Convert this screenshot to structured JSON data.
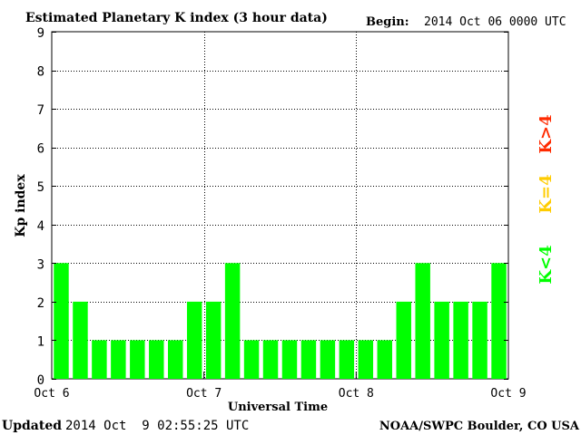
{
  "header": {
    "title": "Estimated Planetary K index (3 hour data)",
    "begin_label": "Begin:",
    "begin_value": "2014 Oct 06 0000 UTC"
  },
  "footer": {
    "updated_label": "Updated",
    "updated_value": "2014 Oct  9 02:55:25 UTC",
    "credit": "NOAA/SWPC Boulder, CO USA"
  },
  "legend": {
    "low": "K<4",
    "mid": "K=4",
    "high": "K>4"
  },
  "colors": {
    "low": "#00ff00",
    "mid": "#ffcc00",
    "high": "#ff2a00",
    "grid": "#000000"
  },
  "chart_data": {
    "type": "bar",
    "title": "Estimated Planetary K index (3 hour data)",
    "xlabel": "Universal Time",
    "ylabel": "Kp index",
    "ylim": [
      0,
      9
    ],
    "yticks": [
      "0",
      "1",
      "2",
      "3",
      "4",
      "5",
      "6",
      "7",
      "8",
      "9"
    ],
    "xticks": [
      "Oct 6",
      "Oct 7",
      "Oct 8",
      "Oct 9"
    ],
    "bars_per_day": 8,
    "grid": true,
    "values": [
      3,
      2,
      1,
      1,
      1,
      1,
      1,
      2,
      2,
      3,
      1,
      1,
      1,
      1,
      1,
      1,
      1,
      1,
      2,
      3,
      2,
      2,
      2,
      3
    ]
  }
}
